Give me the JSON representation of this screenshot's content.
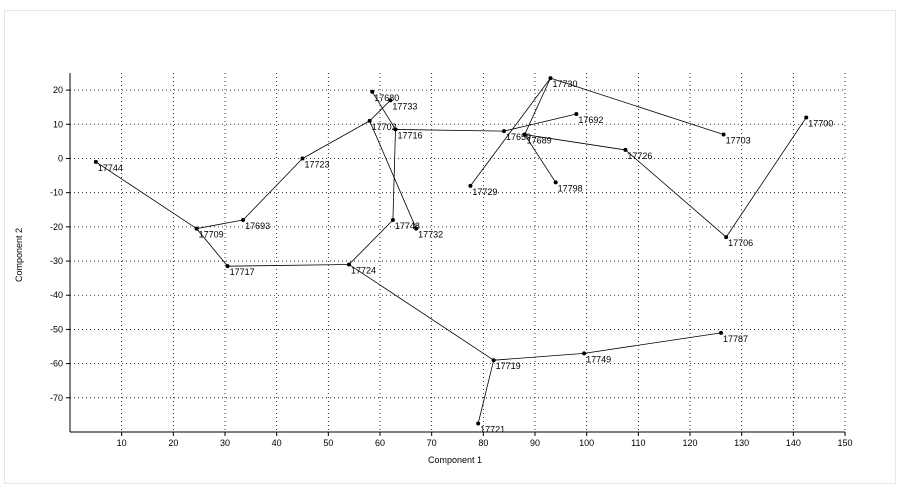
{
  "chart_data": {
    "type": "scatter",
    "title": "",
    "xlabel": "Component 1",
    "ylabel": "Component 2",
    "xlim": [
      0,
      150
    ],
    "ylim": [
      -80,
      25
    ],
    "x_ticks": [
      10,
      20,
      30,
      40,
      50,
      60,
      70,
      80,
      90,
      100,
      110,
      120,
      130,
      140,
      150
    ],
    "y_ticks": [
      20,
      10,
      0,
      -10,
      -20,
      -30,
      -40,
      -50,
      -60,
      -70
    ],
    "grid": true,
    "points": [
      {
        "label": "17744",
        "x": 5,
        "y": -1
      },
      {
        "label": "17709",
        "x": 24.5,
        "y": -20.5
      },
      {
        "label": "17693",
        "x": 33.5,
        "y": -18
      },
      {
        "label": "17717",
        "x": 30.5,
        "y": -31.5
      },
      {
        "label": "17723",
        "x": 45,
        "y": 0
      },
      {
        "label": "17724",
        "x": 54,
        "y": -31
      },
      {
        "label": "17702",
        "x": 58,
        "y": 11
      },
      {
        "label": "17680",
        "x": 58.5,
        "y": 19.5
      },
      {
        "label": "17733",
        "x": 62,
        "y": 17
      },
      {
        "label": "17716",
        "x": 63,
        "y": 8.5
      },
      {
        "label": "17748",
        "x": 62.5,
        "y": -18
      },
      {
        "label": "17732",
        "x": 67,
        "y": -20.5
      },
      {
        "label": "17729",
        "x": 77.5,
        "y": -8
      },
      {
        "label": "17659",
        "x": 84,
        "y": 8
      },
      {
        "label": "17730",
        "x": 93,
        "y": 23.5
      },
      {
        "label": "17689",
        "x": 88,
        "y": 7
      },
      {
        "label": "17692",
        "x": 98,
        "y": 13
      },
      {
        "label": "17798",
        "x": 94,
        "y": -7
      },
      {
        "label": "17726",
        "x": 107.5,
        "y": 2.5
      },
      {
        "label": "17703",
        "x": 126.5,
        "y": 7
      },
      {
        "label": "17700",
        "x": 142.5,
        "y": 12
      },
      {
        "label": "17706",
        "x": 127,
        "y": -23
      },
      {
        "label": "17719",
        "x": 82,
        "y": -59
      },
      {
        "label": "17721",
        "x": 79,
        "y": -77.5
      },
      {
        "label": "17749",
        "x": 99.5,
        "y": -57
      },
      {
        "label": "17787",
        "x": 126,
        "y": -51
      }
    ],
    "edges": [
      [
        "17744",
        "17709"
      ],
      [
        "17709",
        "17693"
      ],
      [
        "17709",
        "17717"
      ],
      [
        "17693",
        "17723"
      ],
      [
        "17723",
        "17702"
      ],
      [
        "17702",
        "17733"
      ],
      [
        "17680",
        "17716"
      ],
      [
        "17702",
        "17732"
      ],
      [
        "17716",
        "17748"
      ],
      [
        "17716",
        "17659"
      ],
      [
        "17748",
        "17724"
      ],
      [
        "17717",
        "17724"
      ],
      [
        "17724",
        "17719"
      ],
      [
        "17719",
        "17721"
      ],
      [
        "17719",
        "17749"
      ],
      [
        "17749",
        "17787"
      ],
      [
        "17729",
        "17730"
      ],
      [
        "17659",
        "17692"
      ],
      [
        "17730",
        "17689"
      ],
      [
        "17730",
        "17703"
      ],
      [
        "17689",
        "17798"
      ],
      [
        "17689",
        "17726"
      ],
      [
        "17726",
        "17706"
      ],
      [
        "17706",
        "17700"
      ]
    ]
  }
}
